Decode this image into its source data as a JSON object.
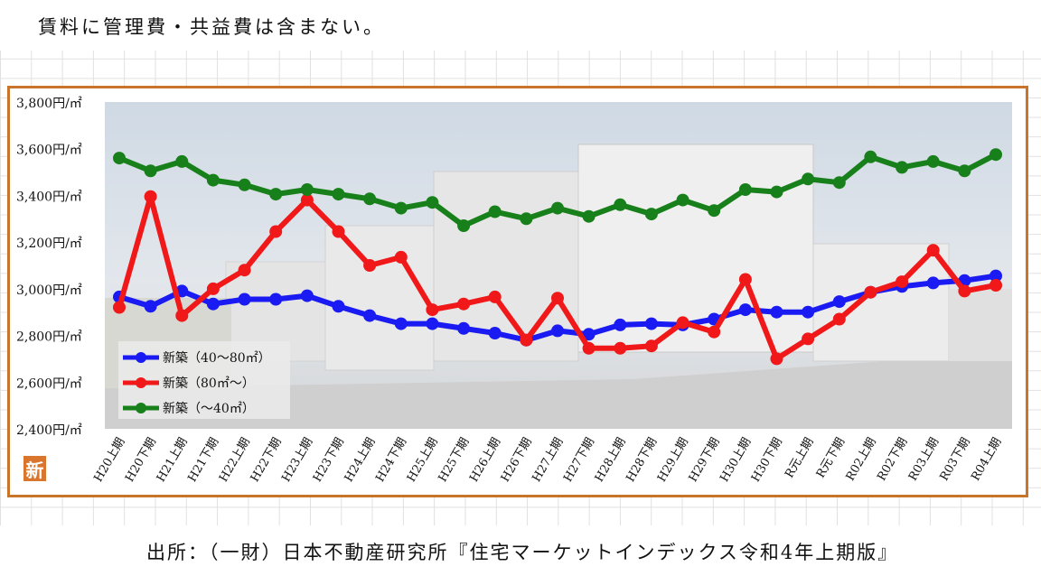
{
  "note": "賃料に管理費・共益費は含まない。",
  "source": "出所：（一財）日本不動産研究所『住宅マーケットインデックス令和4年上期版』",
  "badge": "新",
  "colors": {
    "frame": "#c8742a",
    "series_blue": "#1a1af2",
    "series_red": "#f01818",
    "series_green": "#17801a"
  },
  "chart_data": {
    "type": "line",
    "title": "",
    "xlabel": "",
    "ylabel": "",
    "ylim": [
      2400,
      3800
    ],
    "yticks": [
      3800,
      3600,
      3400,
      3200,
      3000,
      2800,
      2600,
      2400
    ],
    "ytick_labels": [
      "3,800円/㎡",
      "3,600円/㎡",
      "3,400円/㎡",
      "3,200円/㎡",
      "3,000円/㎡",
      "2,800円/㎡",
      "2,600円/㎡",
      "2,400円/㎡"
    ],
    "grid": false,
    "legend": "bottom-left",
    "categories": [
      "H20上期",
      "H20下期",
      "H21上期",
      "H21下期",
      "H22上期",
      "H22下期",
      "H23上期",
      "H23下期",
      "H24上期",
      "H24下期",
      "H25上期",
      "H25下期",
      "H26上期",
      "H26下期",
      "H27上期",
      "H27下期",
      "H28上期",
      "H28下期",
      "H29上期",
      "H29下期",
      "H30上期",
      "H30下期",
      "R元上期",
      "R元下期",
      "R02上期",
      "R02下期",
      "R03上期",
      "R03下期",
      "R04上期"
    ],
    "series": [
      {
        "name": "新築（40～80㎡）",
        "color": "#1a1af2",
        "values": [
          2965,
          2925,
          2990,
          2935,
          2955,
          2955,
          2970,
          2925,
          2885,
          2850,
          2850,
          2830,
          2810,
          2780,
          2820,
          2805,
          2845,
          2850,
          2845,
          2870,
          2910,
          2900,
          2900,
          2945,
          2985,
          3010,
          3025,
          3035,
          3055
        ]
      },
      {
        "name": "新築（80㎡～）",
        "color": "#f01818",
        "values": [
          2920,
          3395,
          2885,
          3000,
          3080,
          3245,
          3380,
          3245,
          3100,
          3135,
          2910,
          2935,
          2965,
          2780,
          2960,
          2745,
          2745,
          2755,
          2855,
          2815,
          3040,
          2700,
          2785,
          2870,
          2985,
          3030,
          3165,
          2990,
          3015
        ]
      },
      {
        "name": "新築（～40㎡）",
        "color": "#17801a",
        "values": [
          3560,
          3505,
          3545,
          3465,
          3445,
          3405,
          3425,
          3405,
          3385,
          3345,
          3370,
          3270,
          3330,
          3300,
          3345,
          3310,
          3360,
          3320,
          3380,
          3335,
          3425,
          3415,
          3470,
          3455,
          3565,
          3520,
          3545,
          3505,
          3575
        ]
      }
    ]
  }
}
